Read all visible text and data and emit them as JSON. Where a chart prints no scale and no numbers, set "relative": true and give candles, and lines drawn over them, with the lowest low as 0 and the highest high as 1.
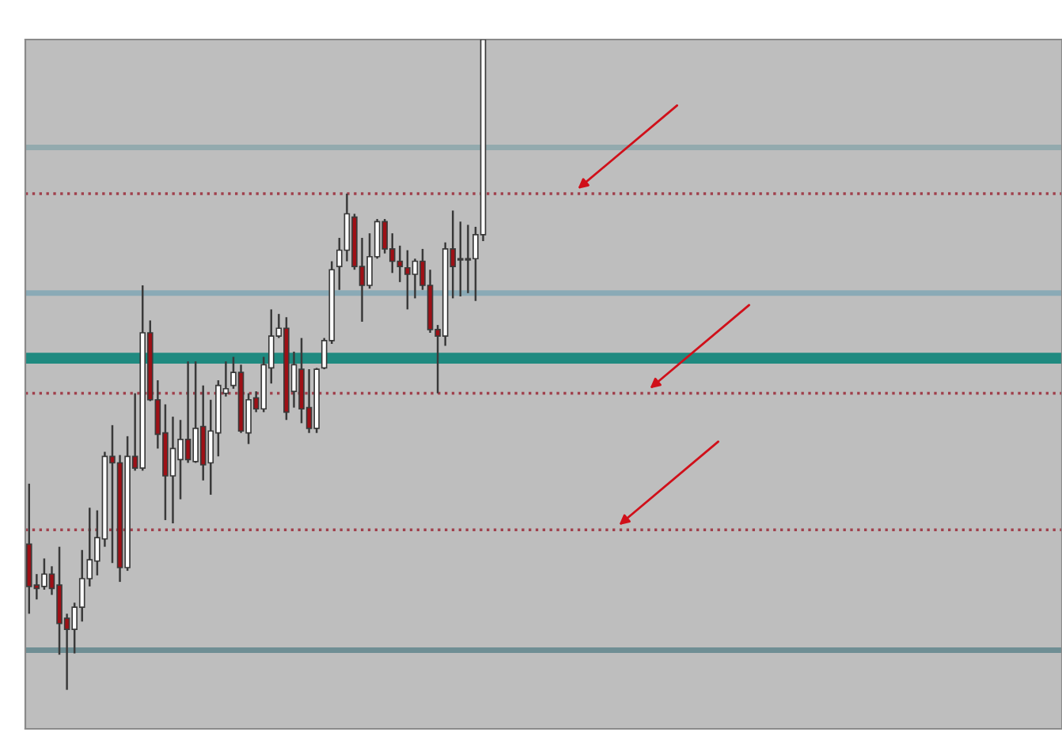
{
  "chart_data": {
    "type": "candlestick",
    "relative": true,
    "categories": [
      null,
      null,
      null,
      null,
      null,
      null,
      null,
      null,
      null,
      null,
      null,
      null,
      null,
      null,
      null,
      null,
      null,
      null,
      null,
      null,
      null,
      null,
      null,
      null,
      null,
      null,
      null,
      null,
      null,
      null,
      null,
      null,
      null,
      null,
      null,
      null,
      null,
      null,
      null,
      null,
      null,
      null,
      null,
      null,
      null,
      null,
      null,
      null,
      null,
      null,
      null,
      null,
      null,
      null,
      null,
      null,
      null,
      null,
      null,
      null,
      null,
      null,
      null,
      null,
      null,
      null,
      null,
      null,
      null,
      null,
      null,
      null,
      null,
      null,
      null,
      null,
      null,
      null,
      null,
      null,
      null,
      null,
      null,
      null,
      null,
      null,
      null,
      null,
      null,
      null,
      null,
      null,
      null,
      null,
      null,
      null,
      null,
      null,
      null,
      null,
      null,
      null,
      null,
      null,
      null,
      null,
      null,
      null,
      null,
      null,
      null,
      null,
      null,
      null,
      null,
      null,
      null,
      null,
      null,
      null,
      null,
      null,
      null,
      null,
      null,
      null,
      null,
      null,
      null,
      null,
      null,
      null,
      null,
      null,
      null,
      null,
      null
    ],
    "ohlc": [
      [
        0.224,
        0.317,
        0.117,
        0.159
      ],
      [
        0.161,
        0.178,
        0.139,
        0.156
      ],
      [
        0.159,
        0.202,
        0.154,
        0.178
      ],
      [
        0.178,
        0.19,
        0.146,
        0.156
      ],
      [
        0.161,
        0.22,
        0.054,
        0.102
      ],
      [
        0.11,
        0.117,
        0,
        0.093
      ],
      [
        0.093,
        0.134,
        0.056,
        0.127
      ],
      [
        0.127,
        0.215,
        0.105,
        0.171
      ],
      [
        0.171,
        0.28,
        0.159,
        0.2
      ],
      [
        0.198,
        0.276,
        0.176,
        0.234
      ],
      [
        0.232,
        0.366,
        0.22,
        0.359
      ],
      [
        0.359,
        0.407,
        0.195,
        0.349
      ],
      [
        0.349,
        0.361,
        0.166,
        0.188
      ],
      [
        0.188,
        0.39,
        0.183,
        0.359
      ],
      [
        0.359,
        0.456,
        0.337,
        0.341
      ],
      [
        0.341,
        0.622,
        0.337,
        0.549
      ],
      [
        0.549,
        0.568,
        0.444,
        0.446
      ],
      [
        0.446,
        0.476,
        0.371,
        0.393
      ],
      [
        0.395,
        0.439,
        0.261,
        0.329
      ],
      [
        0.329,
        0.42,
        0.256,
        0.371
      ],
      [
        0.354,
        0.415,
        0.293,
        0.385
      ],
      [
        0.385,
        0.505,
        0.349,
        0.354
      ],
      [
        0.351,
        0.505,
        0.349,
        0.402
      ],
      [
        0.405,
        0.468,
        0.322,
        0.346
      ],
      [
        0.349,
        0.446,
        0.3,
        0.398
      ],
      [
        0.395,
        0.476,
        0.359,
        0.468
      ],
      [
        0.456,
        0.505,
        0.451,
        0.463
      ],
      [
        0.468,
        0.512,
        0.463,
        0.488
      ],
      [
        0.488,
        0.5,
        0.395,
        0.398
      ],
      [
        0.395,
        0.456,
        0.378,
        0.446
      ],
      [
        0.449,
        0.459,
        0.427,
        0.432
      ],
      [
        0.432,
        0.512,
        0.427,
        0.5
      ],
      [
        0.495,
        0.585,
        0.471,
        0.544
      ],
      [
        0.544,
        0.578,
        0.541,
        0.556
      ],
      [
        0.556,
        0.573,
        0.415,
        0.427
      ],
      [
        0.459,
        0.52,
        0.434,
        0.5
      ],
      [
        0.493,
        0.541,
        0.41,
        0.432
      ],
      [
        0.434,
        0.493,
        0.395,
        0.402
      ],
      [
        0.402,
        0.495,
        0.395,
        0.493
      ],
      [
        0.495,
        0.541,
        0.493,
        0.537
      ],
      [
        0.537,
        0.659,
        0.532,
        0.646
      ],
      [
        0.651,
        0.695,
        0.615,
        0.676
      ],
      [
        0.676,
        0.763,
        0.659,
        0.732
      ],
      [
        0.727,
        0.732,
        0.646,
        0.651
      ],
      [
        0.651,
        0.695,
        0.566,
        0.622
      ],
      [
        0.622,
        0.702,
        0.617,
        0.666
      ],
      [
        0.666,
        0.724,
        0.663,
        0.72
      ],
      [
        0.72,
        0.724,
        0.671,
        0.678
      ],
      [
        0.678,
        0.702,
        0.641,
        0.659
      ],
      [
        0.659,
        0.683,
        0.627,
        0.651
      ],
      [
        0.649,
        0.676,
        0.585,
        0.639
      ],
      [
        0.639,
        0.663,
        0.602,
        0.659
      ],
      [
        0.659,
        0.678,
        0.615,
        0.622
      ],
      [
        0.622,
        0.646,
        0.549,
        0.554
      ],
      [
        0.554,
        0.561,
        0.456,
        0.544
      ],
      [
        0.544,
        0.688,
        0.529,
        0.678
      ],
      [
        0.678,
        0.737,
        0.602,
        0.651
      ],
      [
        0.661,
        0.72,
        0.605,
        0.663
      ],
      [
        0.661,
        0.715,
        0.61,
        0.663
      ],
      [
        0.663,
        0.712,
        0.598,
        0.7
      ],
      [
        0.7,
        1,
        0.69,
        1
      ],
      null,
      null,
      null,
      null,
      null,
      null,
      null,
      null,
      null,
      null,
      null,
      null,
      null,
      null,
      null,
      null,
      null,
      null,
      null,
      null,
      null,
      null,
      null,
      null,
      null,
      null,
      null,
      null,
      null,
      null,
      null,
      null,
      null,
      null,
      null,
      null,
      null,
      null,
      null,
      null,
      null,
      null,
      null,
      null,
      null,
      null,
      null,
      null,
      null,
      null,
      null,
      null,
      null,
      null,
      null,
      null,
      null,
      null,
      null,
      null,
      null,
      null,
      null,
      null,
      null,
      null,
      null,
      null,
      null,
      null,
      null,
      null,
      null,
      null,
      null,
      null
    ],
    "colors": [
      "#9e1016",
      "#9e1016",
      "#ffffff",
      "#9e1016",
      "#9e1016",
      "#9e1016",
      "#ffffff",
      "#ffffff",
      "#ffffff",
      "#ffffff",
      "#ffffff",
      "#9e1016",
      "#9e1016",
      "#ffffff",
      "#9e1016",
      "#ffffff",
      "#9e1016",
      "#9e1016",
      "#9e1016",
      "#ffffff",
      "#ffffff",
      "#9e1016",
      "#ffffff",
      "#9e1016",
      "#ffffff",
      "#ffffff",
      "#ffffff",
      "#ffffff",
      "#9e1016",
      "#ffffff",
      "#9e1016",
      "#ffffff",
      "#ffffff",
      "#ffffff",
      "#9e1016",
      "#ffffff",
      "#9e1016",
      "#9e1016",
      "#ffffff",
      "#ffffff",
      "#ffffff",
      "#ffffff",
      "#ffffff",
      "#9e1016",
      "#9e1016",
      "#ffffff",
      "#ffffff",
      "#9e1016",
      "#9e1016",
      "#9e1016",
      "#9e1016",
      "#ffffff",
      "#9e1016",
      "#9e1016",
      "#9e1016",
      "#ffffff",
      "#9e1016",
      "#ffffff",
      "#ffffff",
      "#ffffff",
      "#ffffff",
      null,
      null,
      null,
      null,
      null,
      null,
      null,
      null,
      null,
      null,
      null,
      null,
      null,
      null,
      null,
      null,
      null,
      null,
      null,
      null,
      null,
      null,
      null,
      null,
      null,
      null,
      null,
      null,
      null,
      null,
      null,
      null,
      null,
      null,
      null,
      null,
      null,
      null,
      null,
      null,
      null,
      null,
      null,
      null,
      null,
      null,
      null,
      null,
      null,
      null,
      null,
      null,
      null,
      null,
      null,
      null,
      null,
      null,
      null,
      null,
      null,
      null,
      null,
      null,
      null,
      null,
      null,
      null,
      null,
      null,
      null,
      null,
      null,
      null,
      null,
      null
    ],
    "ref_lines": [
      {
        "axis": "y",
        "value": 0.834,
        "color": "#93aaae",
        "line_style": "solid"
      },
      {
        "axis": "y",
        "value": 0.61,
        "color": "#8aaab6",
        "line_style": "solid"
      },
      {
        "axis": "y",
        "value": 0.51,
        "color": "#1f8a80",
        "line_style": "solid"
      },
      {
        "axis": "y",
        "value": 0.061,
        "color": "#6f8e94",
        "line_style": "solid"
      },
      {
        "axis": "y",
        "value": 0.763,
        "color": "#a0404c",
        "line_style": "dotted"
      },
      {
        "axis": "y",
        "value": 0.456,
        "color": "#a0404c",
        "line_style": "dotted"
      },
      {
        "axis": "y",
        "value": 0.246,
        "color": "#a0404c",
        "line_style": "dotted"
      }
    ],
    "legend": false
  }
}
